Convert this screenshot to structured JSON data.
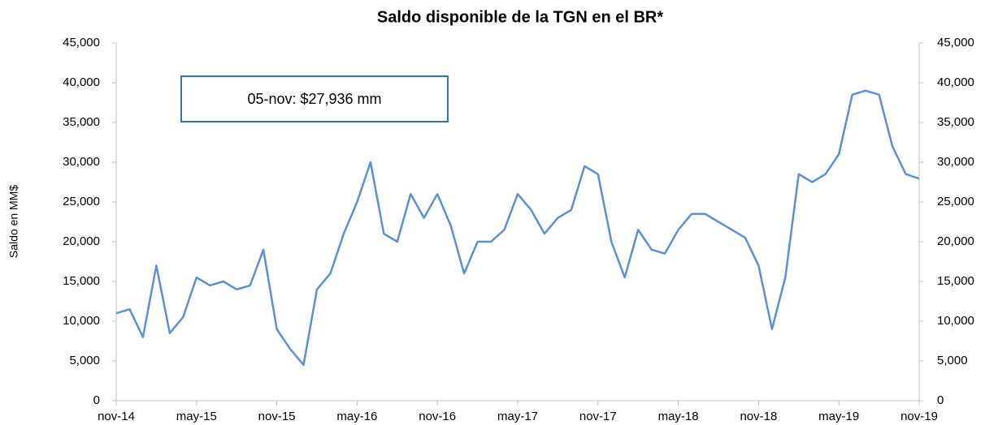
{
  "chart_data": {
    "type": "line",
    "title": "Saldo disponible de la TGN en el BR*",
    "y_label": "Saldo en MM$",
    "annotation": "05-nov: $27,936 mm",
    "categories": [
      "nov-14",
      null,
      null,
      null,
      null,
      null,
      "may-15",
      null,
      null,
      null,
      null,
      null,
      "nov-15",
      null,
      null,
      null,
      null,
      null,
      "may-16",
      null,
      null,
      null,
      null,
      null,
      "nov-16",
      null,
      null,
      null,
      null,
      null,
      "may-17",
      null,
      null,
      null,
      null,
      null,
      "nov-17",
      null,
      null,
      null,
      null,
      null,
      "may-18",
      null,
      null,
      null,
      null,
      null,
      "nov-18",
      null,
      null,
      null,
      null,
      null,
      "may-19",
      null,
      null,
      null,
      null,
      null,
      "nov-19"
    ],
    "series": [
      {
        "name": "Saldo",
        "color": "#5b8fd6",
        "values": [
          11000,
          11500,
          8000,
          17000,
          8500,
          10500,
          15500,
          14500,
          15000,
          14000,
          14500,
          19000,
          9000,
          6500,
          4500,
          14000,
          16000,
          21000,
          25000,
          30000,
          21000,
          20000,
          26000,
          23000,
          26000,
          22000,
          16000,
          20000,
          20000,
          21500,
          26000,
          24000,
          21000,
          23000,
          24000,
          29500,
          28500,
          20000,
          15500,
          21500,
          19000,
          18500,
          21500,
          23500,
          23500,
          22500,
          21500,
          20500,
          17000,
          9000,
          15500,
          28500,
          27500,
          28500,
          31000,
          38500,
          39000,
          38500,
          32000,
          28500,
          27936
        ]
      }
    ],
    "ylim": [
      0,
      45000
    ],
    "yticks": [
      0,
      {
        "value": 5000,
        "label": "5,000"
      },
      {
        "value": 10000,
        "label": "10,000"
      },
      {
        "value": 15000,
        "label": "15,000"
      },
      {
        "value": 20000,
        "label": "20,000"
      },
      {
        "value": 25000,
        "label": "25,000"
      },
      {
        "value": 30000,
        "label": "30,000"
      },
      {
        "value": 35000,
        "label": "35,000"
      },
      {
        "value": 40000,
        "label": "40,000"
      },
      {
        "value": 45000,
        "label": "45,000"
      }
    ],
    "y2lim": [
      0,
      45000
    ],
    "y2ticks": [
      0,
      {
        "value": 5000,
        "label": "5,000"
      },
      {
        "value": 10000,
        "label": "10,000"
      },
      {
        "value": 15000,
        "label": "15,000"
      },
      {
        "value": 20000,
        "label": "20,000"
      },
      {
        "value": 25000,
        "label": "25,000"
      },
      {
        "value": 30000,
        "label": "30,000"
      },
      {
        "value": 35000,
        "label": "35,000"
      },
      {
        "value": 40000,
        "label": "40,000"
      },
      {
        "value": 45000,
        "label": "45,000"
      }
    ],
    "grid": false
  }
}
